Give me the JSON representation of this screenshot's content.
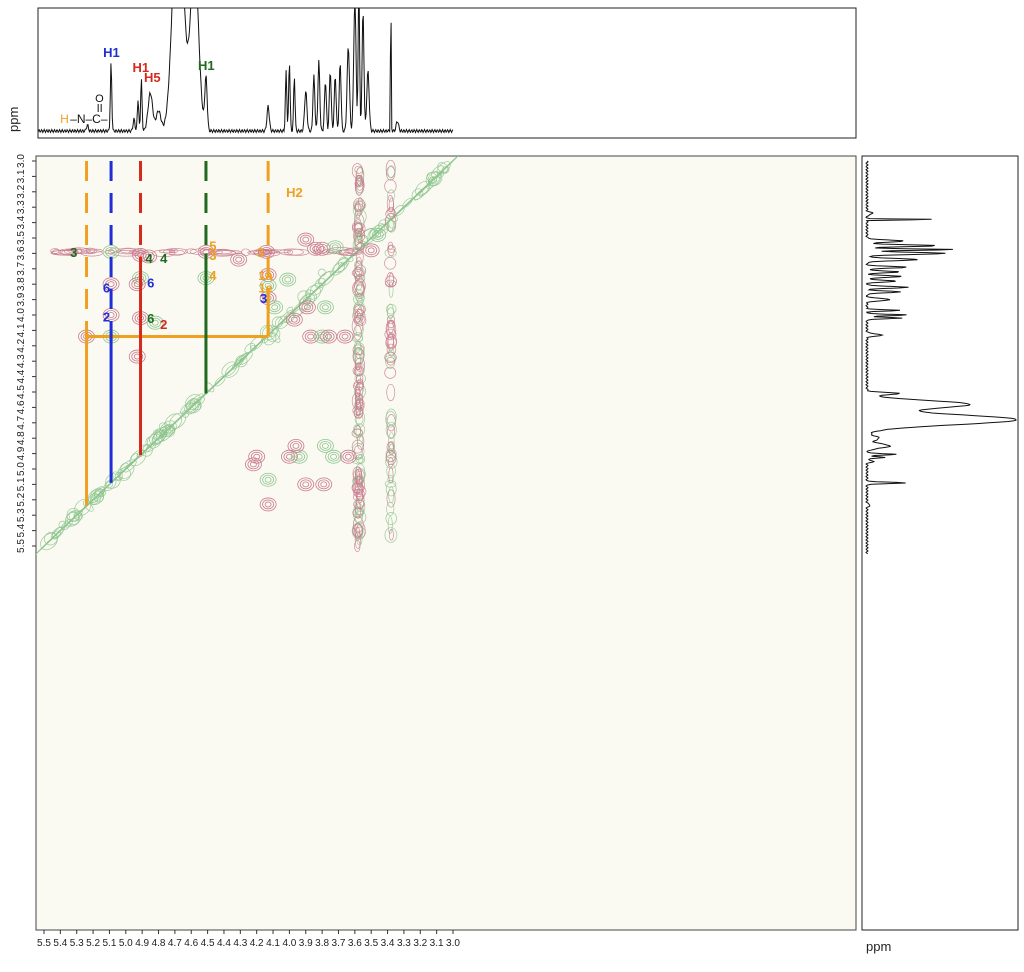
{
  "chart_data": {
    "type": "heatmap",
    "x_axis": {
      "unit": "ppm",
      "range": [
        5.5,
        3.0
      ],
      "ticks": [
        "5.5",
        "5.4",
        "5.3",
        "5.2",
        "5.1",
        "5.0",
        "4.9",
        "4.8",
        "4.7",
        "4.6",
        "4.5",
        "4.4",
        "4.3",
        "4.2",
        "4.1",
        "4.0",
        "3.9",
        "3.8",
        "3.7",
        "3.6",
        "3.5",
        "3.4",
        "3.3",
        "3.2",
        "3.1",
        "3.0"
      ]
    },
    "y_axis": {
      "unit": "ppm",
      "range": [
        3.0,
        5.5
      ],
      "ticks": [
        "3.0",
        "3.1",
        "3.2",
        "3.3",
        "3.4",
        "3.5",
        "3.6",
        "3.7",
        "3.8",
        "3.9",
        "4.0",
        "4.1",
        "4.2",
        "4.3",
        "4.4",
        "4.5",
        "4.6",
        "4.7",
        "4.8",
        "4.9",
        "5.0",
        "5.1",
        "5.2",
        "5.3",
        "5.4",
        "5.5"
      ]
    },
    "top_spectrum_labels": [
      {
        "text": "H1",
        "ppm": 5.09,
        "color": "#1f2fd6"
      },
      {
        "text": "H1",
        "ppm": 4.91,
        "color": "#d42a1c"
      },
      {
        "text": "H5",
        "ppm": 4.84,
        "color": "#d42a1c"
      },
      {
        "text": "H1",
        "ppm": 4.51,
        "color": "#1e6a1e"
      }
    ],
    "amide_label": {
      "h": "H",
      "rest": "–N–C–",
      "o": "O",
      "ppm": 5.23
    },
    "h2_label": {
      "text": "H2",
      "x_ppm": 4.02,
      "y_ppm": 3.2,
      "color": "#f0a020"
    },
    "residues": [
      {
        "name": "H-N-C=O H1",
        "color": "#f0a020",
        "h1_ppm": 5.24,
        "h2_ppm": 4.14
      },
      {
        "name": "blue H1",
        "color": "#1f2fd6",
        "h1_ppm": 5.09,
        "h2_ppm": 4.14
      },
      {
        "name": "red H1",
        "color": "#d42a1c",
        "h1_ppm": 4.91,
        "h2_ppm": 3.62
      },
      {
        "name": "green H1",
        "color": "#1e6a1e",
        "h1_ppm": 4.51,
        "h2_ppm": 3.6
      }
    ],
    "crosspeak_labels": [
      {
        "text": "3",
        "x_ppm": 5.34,
        "y_ppm": 3.59,
        "color": "#1e6a1e"
      },
      {
        "text": "4",
        "x_ppm": 4.88,
        "y_ppm": 3.63,
        "color": "#1e6a1e"
      },
      {
        "text": "4",
        "x_ppm": 4.79,
        "y_ppm": 3.63,
        "color": "#1e6a1e"
      },
      {
        "text": "5",
        "x_ppm": 4.49,
        "y_ppm": 3.55,
        "color": "#f0a020"
      },
      {
        "text": "3",
        "x_ppm": 4.49,
        "y_ppm": 3.61,
        "color": "#f0a020"
      },
      {
        "text": "3",
        "x_ppm": 4.2,
        "y_ppm": 3.59,
        "color": "#f0a020"
      },
      {
        "text": "6",
        "x_ppm": 5.14,
        "y_ppm": 3.82,
        "color": "#1f2fd6"
      },
      {
        "text": "6",
        "x_ppm": 4.87,
        "y_ppm": 3.79,
        "color": "#1f2fd6"
      },
      {
        "text": "4",
        "x_ppm": 4.49,
        "y_ppm": 3.74,
        "color": "#f0a020"
      },
      {
        "text": "1a",
        "x_ppm": 4.19,
        "y_ppm": 3.74,
        "color": "#f0a020"
      },
      {
        "text": "1e",
        "x_ppm": 4.19,
        "y_ppm": 3.82,
        "color": "#f0a020"
      },
      {
        "text": "3",
        "x_ppm": 4.18,
        "y_ppm": 3.89,
        "color": "#1f2fd6"
      },
      {
        "text": "2",
        "x_ppm": 5.14,
        "y_ppm": 4.01,
        "color": "#1f2fd6"
      },
      {
        "text": "6",
        "x_ppm": 4.87,
        "y_ppm": 4.02,
        "color": "#1e6a1e"
      },
      {
        "text": "2",
        "x_ppm": 4.79,
        "y_ppm": 4.06,
        "color": "#d42a1c"
      }
    ],
    "contour_colors": {
      "positive": "#8fc58f",
      "negative": "#c97a8e"
    },
    "ppm_label": "ppm"
  }
}
